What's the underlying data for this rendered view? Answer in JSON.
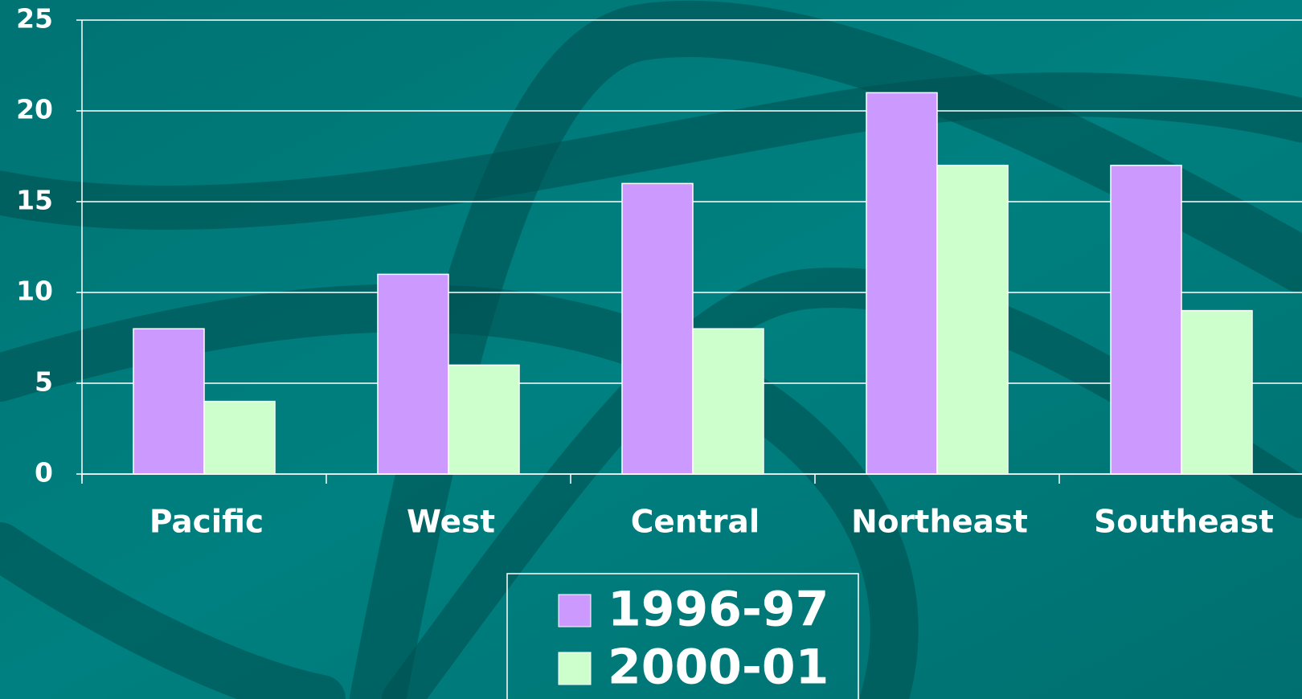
{
  "chart_data": {
    "type": "bar",
    "categories": [
      "Pacific",
      "West",
      "Central",
      "Northeast",
      "Southeast"
    ],
    "series": [
      {
        "name": "1996-97",
        "color": "#cc99ff",
        "values": [
          8,
          11,
          16,
          21,
          17
        ]
      },
      {
        "name": "2000-01",
        "color": "#ccffcc",
        "values": [
          4,
          6,
          8,
          17,
          9
        ]
      }
    ],
    "ylim": [
      0,
      25
    ],
    "yticks": [
      0,
      5,
      10,
      15,
      20,
      25
    ],
    "grid": true
  }
}
